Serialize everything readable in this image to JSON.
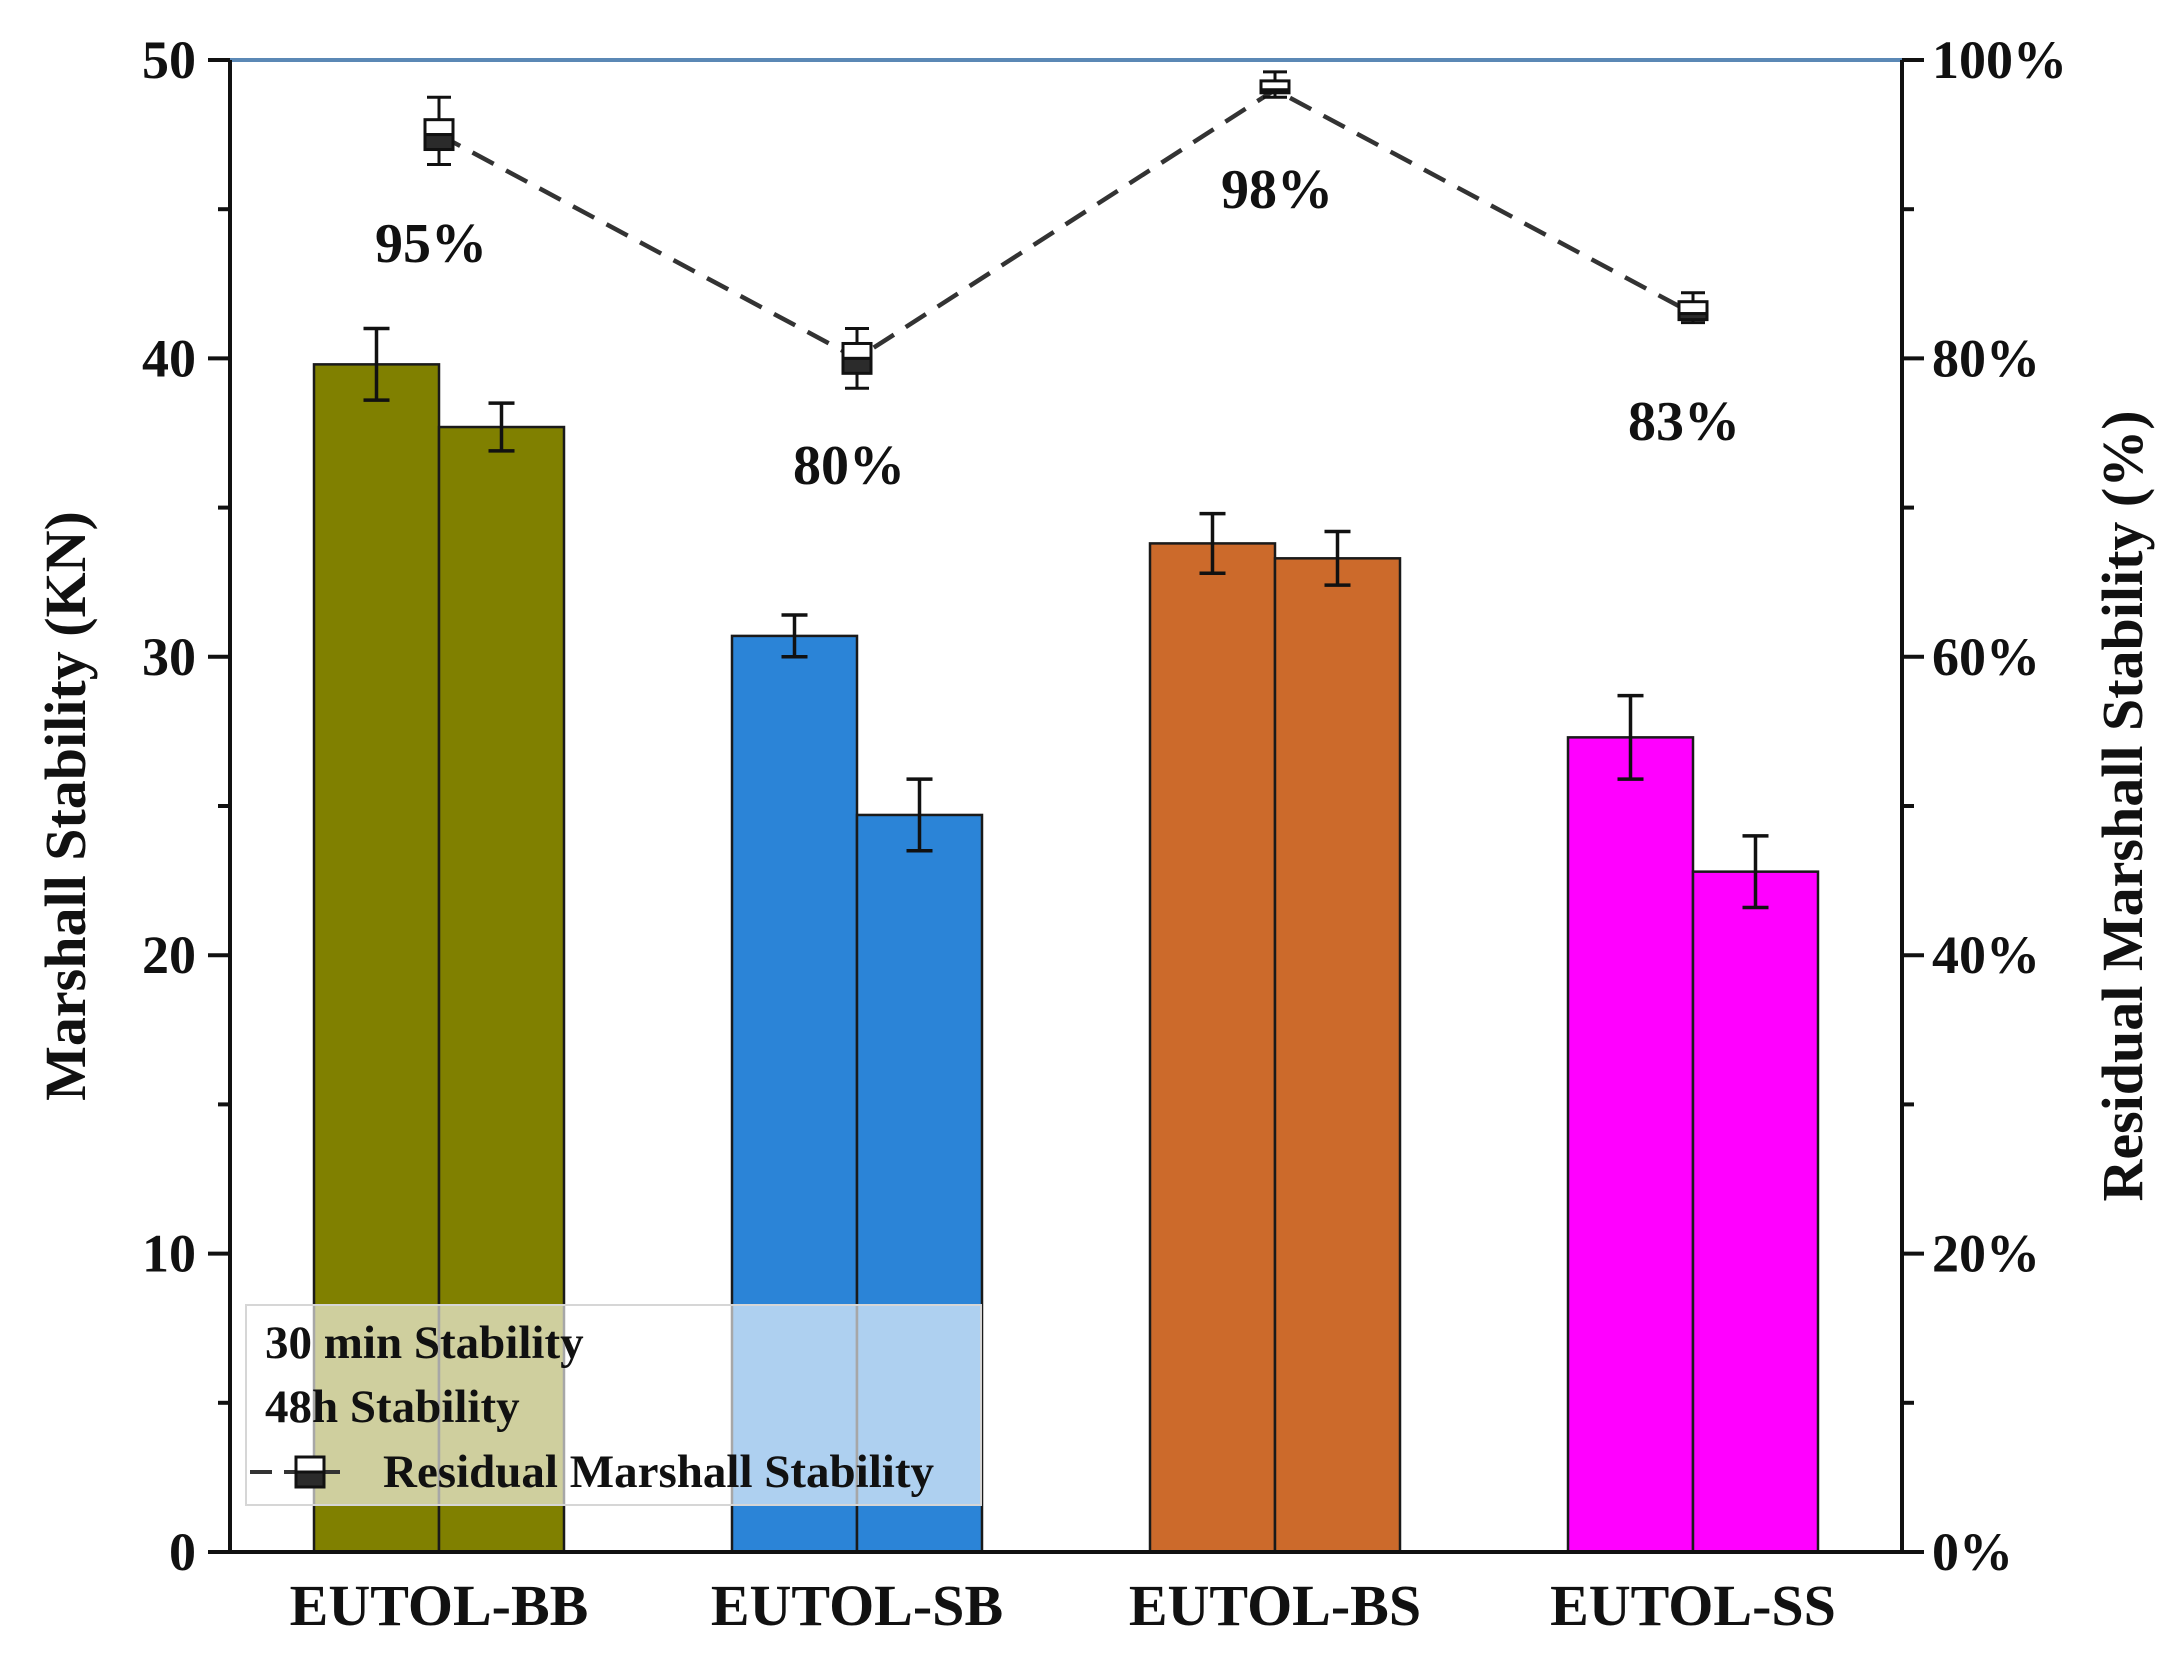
{
  "chart_data": {
    "type": "bar",
    "categories": [
      "EUTOL-BB",
      "EUTOL-SB",
      "EUTOL-BS",
      "EUTOL-SS"
    ],
    "category_colors": [
      "#808000",
      "#2B84D7",
      "#CC6A2B",
      "#FF00FF"
    ],
    "series": [
      {
        "name": "30 min Stability",
        "values": [
          39.8,
          30.7,
          33.8,
          27.3
        ],
        "errors": [
          1.2,
          0.7,
          1.0,
          1.4
        ]
      },
      {
        "name": "48h Stability",
        "values": [
          37.7,
          24.7,
          33.3,
          22.8
        ],
        "errors": [
          0.8,
          1.2,
          0.9,
          1.2
        ]
      }
    ],
    "line_series": {
      "name": "Residual Marshall Stability",
      "values": [
        95,
        80,
        98,
        83
      ],
      "box_min": [
        93,
        78,
        97.5,
        82.4
      ],
      "box_q1": [
        94,
        79,
        97.8,
        82.6
      ],
      "box_q3": [
        96,
        81,
        98.6,
        83.8
      ],
      "box_max": [
        97.5,
        82,
        99.2,
        84.4
      ],
      "labels": [
        "95%",
        "80%",
        "98%",
        "83%"
      ],
      "color": "#333333"
    },
    "ylabel": "Marshall Stability (KN)",
    "ylim": [
      0,
      50
    ],
    "yticks": [
      "0",
      "10",
      "20",
      "30",
      "40",
      "50"
    ],
    "y2label": "Residual Marshall Stability (%)",
    "y2lim": [
      0,
      100
    ],
    "y2ticks": [
      "0%",
      "20%",
      "40%",
      "60%",
      "80%",
      "100%"
    ],
    "top_line_color": "#5B88B5",
    "legend": {
      "position": "bottom-left",
      "entries": [
        "30 min Stability",
        "48h Stability",
        "Residual Marshall Stability"
      ]
    }
  }
}
